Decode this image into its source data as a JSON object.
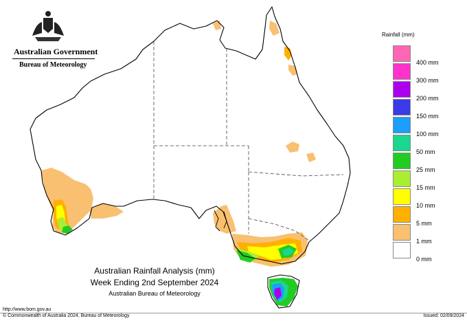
{
  "government": {
    "title": "Australian Government",
    "bureau": "Bureau of Meteorology"
  },
  "legend": {
    "title": "Rainfall (mm)",
    "items": [
      {
        "label": "",
        "color": "#ff66b3"
      },
      {
        "label": "400 mm",
        "color": "#ff33cc"
      },
      {
        "label": "300 mm",
        "color": "#aa00ee"
      },
      {
        "label": "200 mm",
        "color": "#3a3ae6"
      },
      {
        "label": "150 mm",
        "color": "#1a9ffa"
      },
      {
        "label": "100 mm",
        "color": "#1ad68f"
      },
      {
        "label": "50 mm",
        "color": "#22cc22"
      },
      {
        "label": "25 mm",
        "color": "#aaee33"
      },
      {
        "label": "15 mm",
        "color": "#ffff00"
      },
      {
        "label": "10 mm",
        "color": "#ffb000"
      },
      {
        "label": "5 mm",
        "color": "#f8c070"
      },
      {
        "label": "1 mm",
        "color": "#ffffff"
      },
      {
        "label": "0 mm",
        "color": ""
      }
    ]
  },
  "caption": {
    "line1": "Australian Rainfall Analysis (mm)",
    "line2": "Week Ending 2nd September 2024",
    "line3": "Australian Bureau of Meteorology"
  },
  "footer": {
    "url": "http://www.bom.gov.au",
    "copyright": "© Commonwealth of Australia 2024, Bureau of Meteorology",
    "issued": "Issued: 02/09/2024"
  },
  "colors": {
    "outline": "#000000",
    "border": "#444444",
    "light": "#f8c070",
    "orange": "#ffb000",
    "yellow": "#ffff00",
    "lime": "#aaee33",
    "green": "#22cc22",
    "teal": "#1ad68f",
    "blue": "#1a9ffa",
    "purple": "#aa00ee"
  }
}
